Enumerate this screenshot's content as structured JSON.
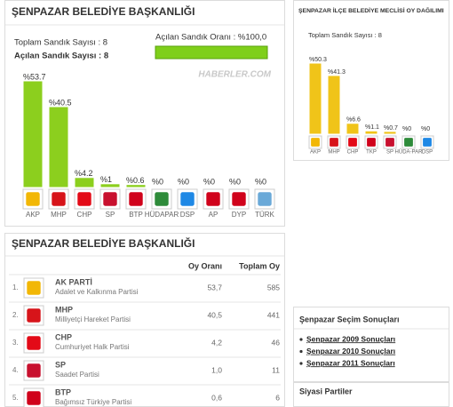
{
  "chart_data": [
    {
      "type": "bar",
      "title": "ŞENPAZAR BELEDİYE BAŞKANLIĞI",
      "info": [
        "Toplam Sandık Sayısı : 8",
        "Açılan Sandık Sayısı : 8",
        "Açılan Sandık Oranı : %100,0"
      ],
      "watermark": "HABERLER.COM",
      "categories": [
        "AKP",
        "MHP",
        "CHP",
        "SP",
        "BTP",
        "HÜDAPAR",
        "DSP",
        "AP",
        "DYP",
        "TÜRK"
      ],
      "values": [
        53.7,
        40.5,
        4.2,
        1,
        0.6,
        0,
        0,
        0,
        0,
        0
      ],
      "value_labels": [
        "%53.7",
        "%40.5",
        "%4.2",
        "%1",
        "%0.6",
        "%0",
        "%0",
        "%0",
        "%0",
        "%0"
      ],
      "color": "#8ccf1e"
    },
    {
      "type": "bar",
      "title": "ŞENPAZAR İLÇE BELEDİYE MECLİSİ OY DAĞILIMI",
      "info": [
        "Toplam Sandık Sayısı : 8"
      ],
      "categories": [
        "AKP",
        "MHP",
        "CHP",
        "TKP",
        "SP",
        "HÜDA-PAR",
        "DSP"
      ],
      "values": [
        50.3,
        41.3,
        6.6,
        1.1,
        0.7,
        0,
        0
      ],
      "value_labels": [
        "%50.3",
        "%41.3",
        "%6.6",
        "%1.1",
        "%0.7",
        "%0",
        "%0"
      ],
      "color": "#f0c419"
    }
  ],
  "table": {
    "title": "ŞENPAZAR BELEDİYE BAŞKANLIĞI",
    "headers": [
      "Oy Oranı",
      "Toplam Oy"
    ],
    "rows": [
      [
        "1.",
        "AK PARTİ",
        "Adalet ve Kalkınma Partisi",
        "53,7",
        "585"
      ],
      [
        "2.",
        "MHP",
        "Milliyetçi Hareket Partisi",
        "40,5",
        "441"
      ],
      [
        "3.",
        "CHP",
        "Cumhuriyet Halk Partisi",
        "4,2",
        "46"
      ],
      [
        "4.",
        "SP",
        "Saadet Partisi",
        "1,0",
        "11"
      ],
      [
        "5.",
        "BTP",
        "Bağımsız Türkiye Partisi",
        "0,6",
        "6"
      ]
    ]
  },
  "sidebar": {
    "title": "Şenpazar Seçim Sonuçları",
    "links": [
      "Şenpazar 2009 Sonuçları",
      "Şenpazar 2010 Sonuçları",
      "Şenpazar 2011 Sonuçları"
    ]
  },
  "parties_box": {
    "title": "Siyasi Partiler"
  }
}
